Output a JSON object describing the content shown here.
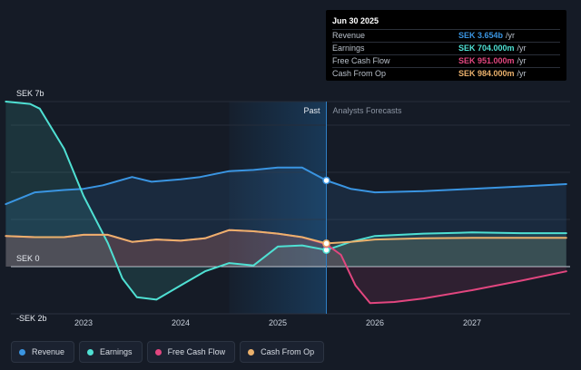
{
  "chart_data": {
    "type": "area",
    "y_axis": {
      "labels": [
        "SEK 7b",
        "SEK 0",
        "-SEK 2b"
      ],
      "min": -2,
      "max": 7,
      "unit": "b"
    },
    "x_axis": {
      "ticks": [
        "2023",
        "2024",
        "2025",
        "2026",
        "2027"
      ]
    },
    "divider_labels": {
      "past": "Past",
      "forecast": "Analysts Forecasts"
    },
    "series": [
      {
        "name": "Revenue",
        "color": "#3a95e2",
        "x": [
          2022.2,
          2022.5,
          2022.8,
          2023.0,
          2023.2,
          2023.5,
          2023.7,
          2024.0,
          2024.2,
          2024.5,
          2024.75,
          2025.0,
          2025.25,
          2025.5,
          2025.75,
          2026.0,
          2026.5,
          2027.0,
          2027.5,
          2027.97
        ],
        "y": [
          2.65,
          3.15,
          3.25,
          3.3,
          3.45,
          3.8,
          3.6,
          3.7,
          3.8,
          4.05,
          4.1,
          4.2,
          4.2,
          3.654,
          3.3,
          3.15,
          3.2,
          3.3,
          3.4,
          3.5
        ]
      },
      {
        "name": "Earnings",
        "color": "#4fe0d3",
        "x": [
          2022.2,
          2022.45,
          2022.55,
          2022.8,
          2023.0,
          2023.25,
          2023.4,
          2023.55,
          2023.75,
          2024.0,
          2024.25,
          2024.5,
          2024.75,
          2025.0,
          2025.25,
          2025.5,
          2025.75,
          2026.0,
          2026.5,
          2027.0,
          2027.5,
          2027.97
        ],
        "y": [
          7.0,
          6.9,
          6.7,
          5.0,
          3.0,
          1.0,
          -0.5,
          -1.3,
          -1.4,
          -0.8,
          -0.2,
          0.15,
          0.05,
          0.85,
          0.9,
          0.704,
          1.05,
          1.3,
          1.4,
          1.45,
          1.42,
          1.42
        ]
      },
      {
        "name": "Free Cash Flow",
        "color": "#e2467f",
        "x": [
          2022.2,
          2022.5,
          2022.8,
          2023.0,
          2023.25,
          2023.5,
          2023.75,
          2024.0,
          2024.25,
          2024.5,
          2024.75,
          2025.0,
          2025.25,
          2025.5,
          2025.65,
          2025.8,
          2025.95,
          2026.2,
          2026.5,
          2027.0,
          2027.5,
          2027.97
        ],
        "y": [
          1.3,
          1.25,
          1.25,
          1.35,
          1.35,
          1.05,
          1.15,
          1.1,
          1.2,
          1.55,
          1.5,
          1.4,
          1.25,
          0.951,
          0.5,
          -0.8,
          -1.55,
          -1.5,
          -1.35,
          -1.0,
          -0.6,
          -0.2
        ]
      },
      {
        "name": "Cash From Op",
        "color": "#ebb16c",
        "x": [
          2022.2,
          2022.5,
          2022.8,
          2023.0,
          2023.25,
          2023.5,
          2023.75,
          2024.0,
          2024.25,
          2024.5,
          2024.75,
          2025.0,
          2025.25,
          2025.5,
          2025.75,
          2026.0,
          2026.5,
          2027.0,
          2027.5,
          2027.97
        ],
        "y": [
          1.3,
          1.25,
          1.25,
          1.35,
          1.35,
          1.05,
          1.15,
          1.1,
          1.2,
          1.55,
          1.5,
          1.4,
          1.25,
          0.984,
          1.05,
          1.15,
          1.2,
          1.22,
          1.22,
          1.22
        ]
      }
    ],
    "past_end_x": 2025.5,
    "highlight_start_x": 2024.5
  },
  "tooltip": {
    "date": "Jun 30 2025",
    "rows": [
      {
        "label": "Revenue",
        "value": "SEK 3.654b",
        "unit": "/yr",
        "color": "#3a95e2"
      },
      {
        "label": "Earnings",
        "value": "SEK 704.000m",
        "unit": "/yr",
        "color": "#4fe0d3"
      },
      {
        "label": "Free Cash Flow",
        "value": "SEK 951.000m",
        "unit": "/yr",
        "color": "#e2467f"
      },
      {
        "label": "Cash From Op",
        "value": "SEK 984.000m",
        "unit": "/yr",
        "color": "#ebb16c"
      }
    ]
  },
  "legend": [
    {
      "label": "Revenue",
      "color": "#3a95e2"
    },
    {
      "label": "Earnings",
      "color": "#4fe0d3"
    },
    {
      "label": "Free Cash Flow",
      "color": "#e2467f"
    },
    {
      "label": "Cash From Op",
      "color": "#ebb16c"
    }
  ]
}
